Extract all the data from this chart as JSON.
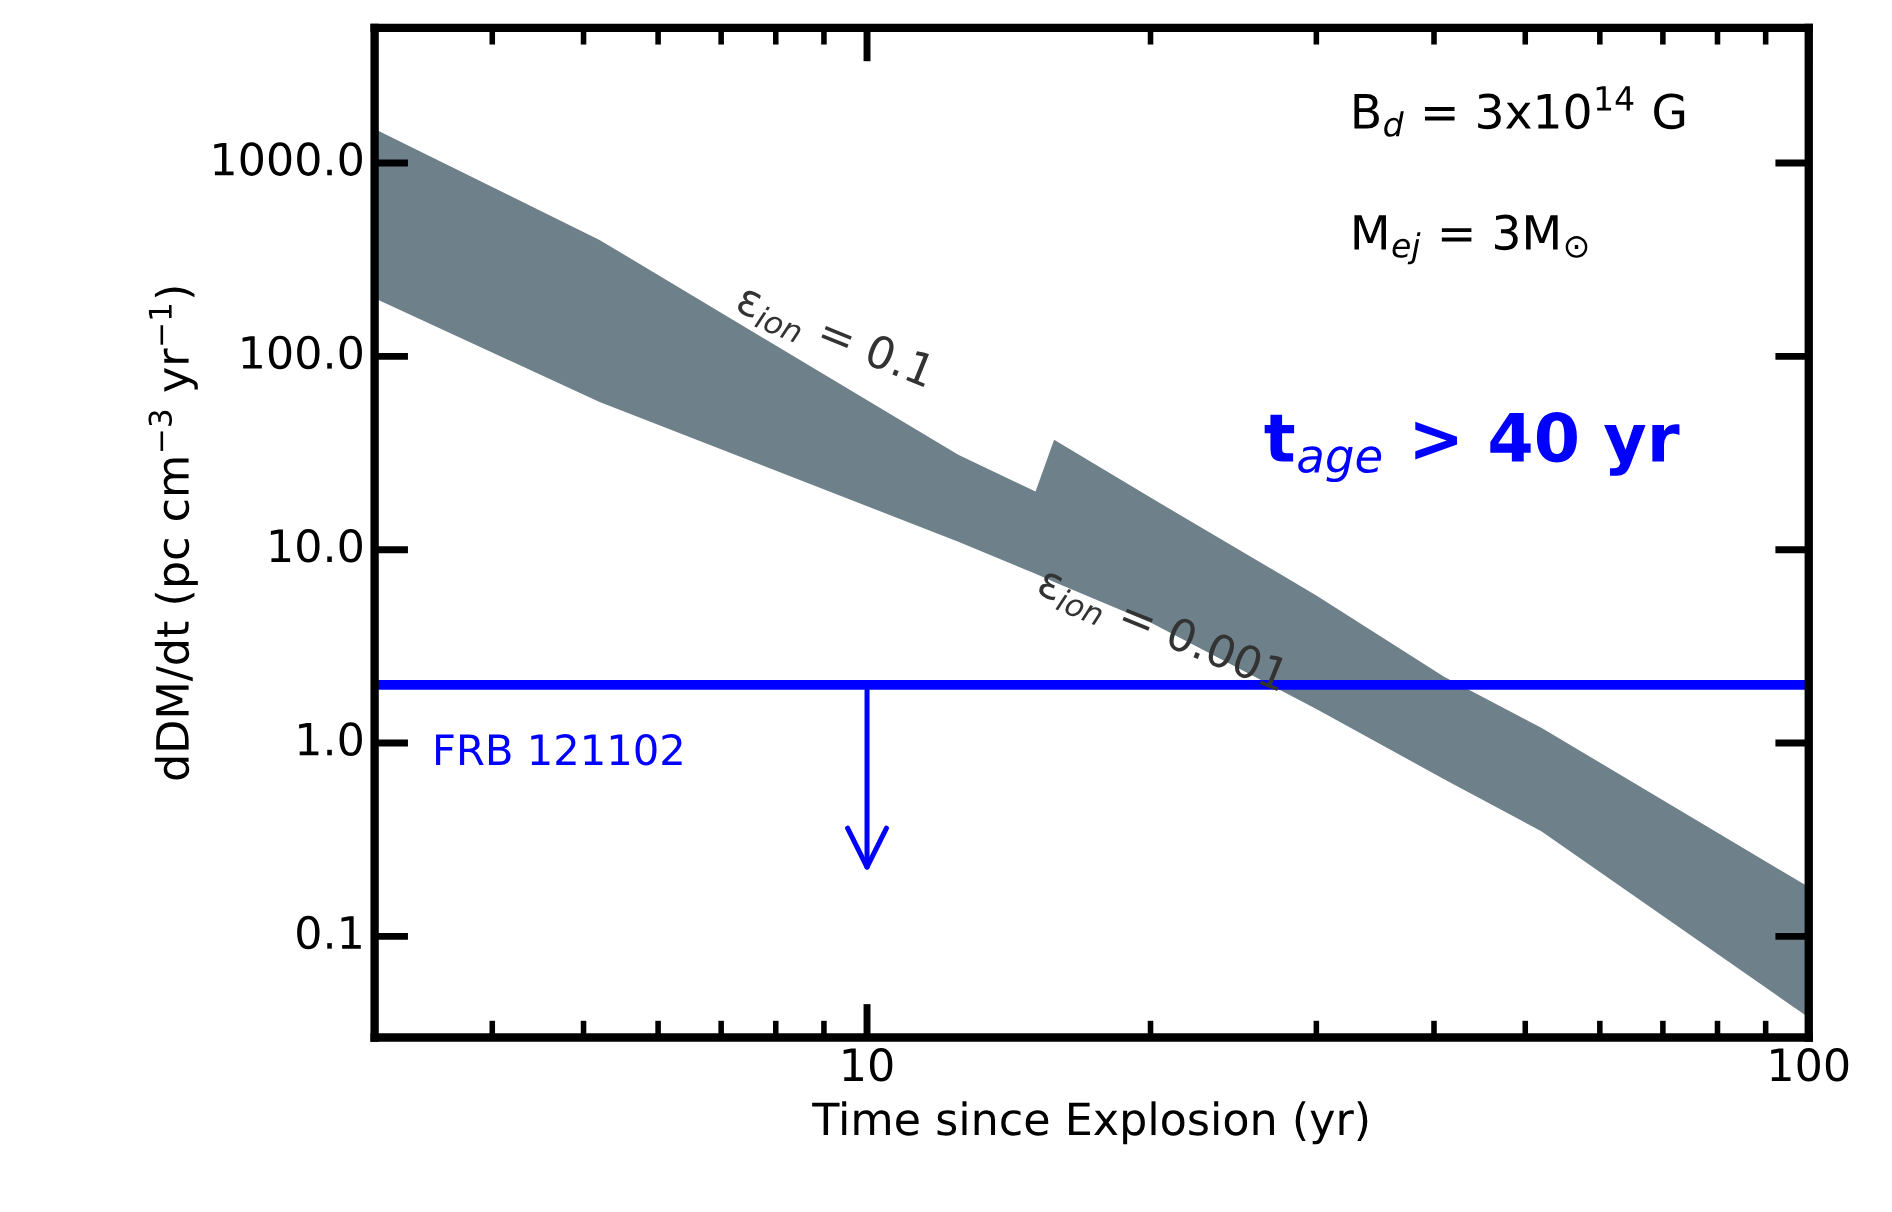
{
  "chart_data": {
    "type": "line",
    "xlabel": "Time since Explosion (yr)",
    "ylabel": "dDM/dt (pc cm$^{−3}$ yr$^{−1}$)",
    "log": "xy",
    "x": [
      3,
      5.2,
      12.5,
      15.1,
      15.8,
      20,
      30,
      41,
      52,
      100
    ],
    "series": [
      {
        "color": "#6e8089",
        "values": [
          null,
          null,
          null,
          null,
          null,
          null,
          null,
          null,
          null,
          null
        ],
        "upper": [
          1500,
          400,
          31,
          20,
          37,
          18.6,
          5.8,
          2.2,
          1.2,
          0.18
        ],
        "lower": [
          200,
          58,
          11,
          7.5,
          6.8,
          4.2,
          1.5,
          0.65,
          0.35,
          0.038
        ]
      }
    ],
    "xlim": [
      3,
      100
    ],
    "xticks": [
      10,
      100
    ],
    "ylim": [
      0.03,
      5000
    ],
    "yticks": [
      {
        "value": 0.1,
        "label": "0.1"
      },
      {
        "value": 1,
        "label": "1.0"
      },
      {
        "value": 10,
        "label": "10.0"
      },
      {
        "value": 100,
        "label": "100.0"
      },
      {
        "value": 1000,
        "label": "1000.0"
      }
    ],
    "ref_lines": [
      {
        "axis": "y",
        "value": 2,
        "label": "FRB 121102",
        "color": "#0000ff"
      }
    ],
    "annotations": [
      "ε$_{ion}$ = 0.1",
      "ε$_{ion}$ = 0.001",
      "B$_{d}$ = 3x10$^{14}$ G",
      "M$_{ej}$ = 3M$_{⊙}$",
      "t$_{age}$ > 40 yr"
    ],
    "grid": false,
    "legend": false
  }
}
